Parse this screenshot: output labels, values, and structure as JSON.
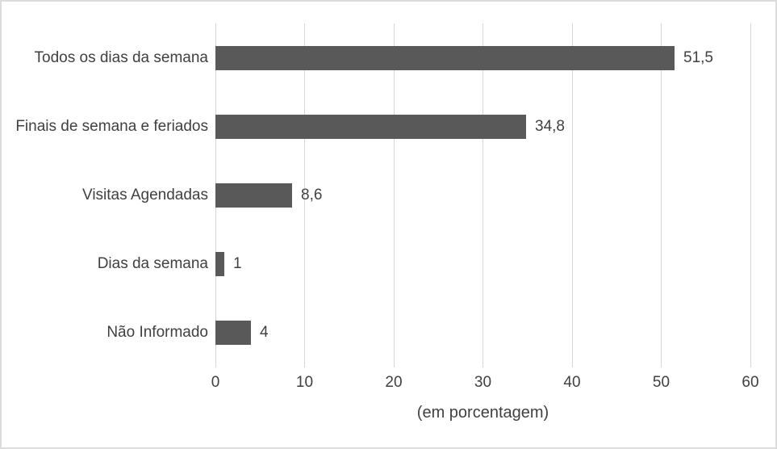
{
  "chart_data": {
    "type": "bar",
    "orientation": "horizontal",
    "title": "",
    "xlabel": "(em porcentagem)",
    "ylabel": "",
    "categories": [
      "Todos os dias da semana",
      "Finais de semana e feriados",
      "Visitas Agendadas",
      "Dias da semana",
      "Não Informado"
    ],
    "values": [
      51.5,
      34.8,
      8.6,
      1,
      4
    ],
    "value_labels": [
      "51,5",
      "34,8",
      "8,6",
      "1",
      "4"
    ],
    "xlim": [
      0,
      60
    ],
    "xticks": [
      0,
      10,
      20,
      30,
      40,
      50,
      60
    ],
    "grid": true,
    "legend": false,
    "colors": {
      "bar": "#595959",
      "gridline": "#d6d6d6",
      "text": "#404040",
      "border": "#dcdcdc",
      "background": "#ffffff"
    }
  }
}
